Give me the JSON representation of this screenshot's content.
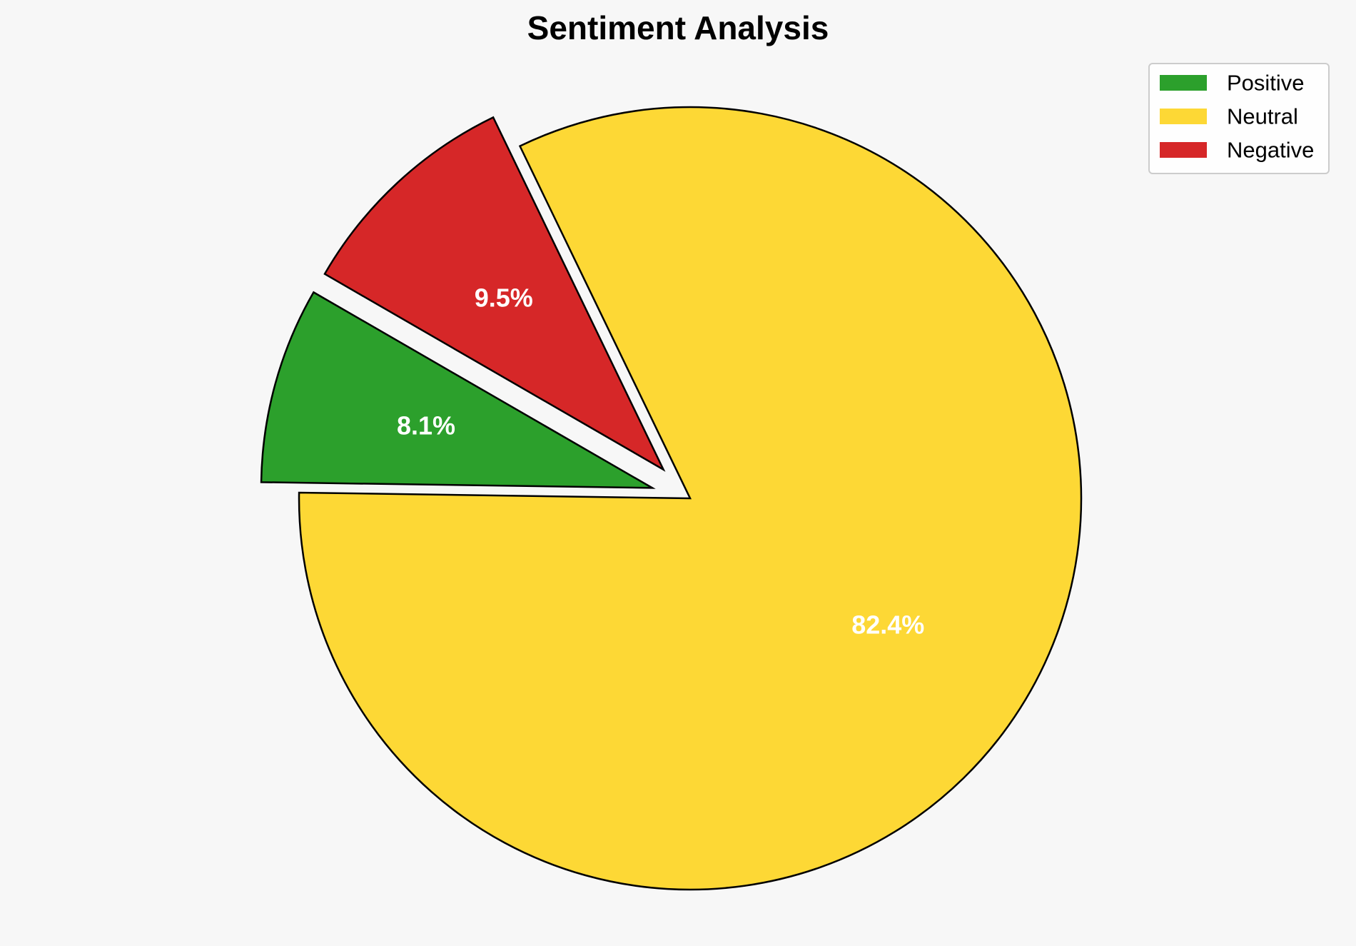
{
  "chart_data": {
    "type": "pie",
    "title": "Sentiment Analysis",
    "labels": [
      "Positive",
      "Neutral",
      "Negative"
    ],
    "values": [
      8.1,
      82.4,
      9.5
    ],
    "value_labels": [
      "8.1%",
      "82.4%",
      "9.5%"
    ],
    "colors": [
      "#2ca02c",
      "#fdd835",
      "#d62728"
    ],
    "exploded": [
      true,
      false,
      true
    ],
    "start_angle_degrees": 150,
    "direction": "counterclockwise",
    "edge_color": "#000000",
    "legend": {
      "position": "top-right",
      "entries": [
        "Positive",
        "Neutral",
        "Negative"
      ]
    }
  },
  "colors": {
    "background": "#f7f7f7",
    "label_text": "#ffffff"
  }
}
